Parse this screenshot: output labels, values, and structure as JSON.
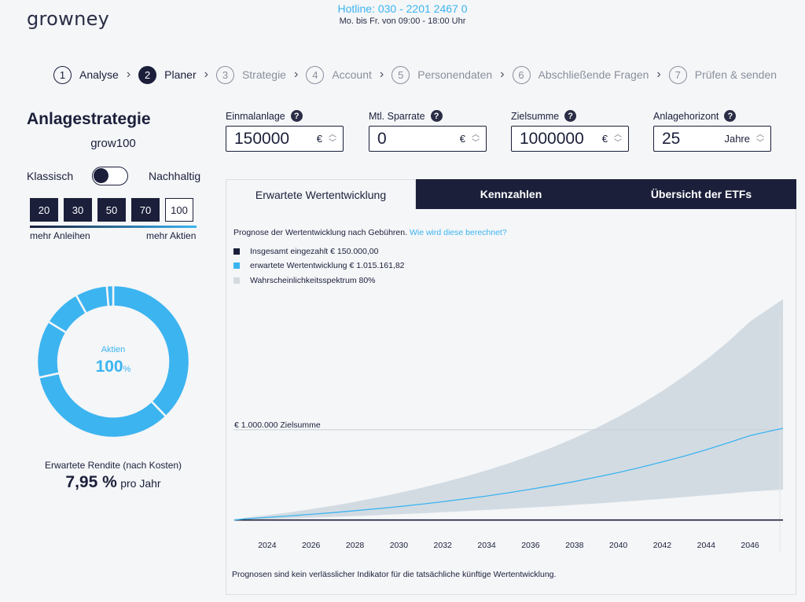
{
  "header": {
    "logo": "growney",
    "hotline": "Hotline: 030 - 2201 2467 0",
    "hours": "Mo. bis Fr. von 09:00 - 18:00 Uhr"
  },
  "stepper": [
    {
      "num": "1",
      "label": "Analyse",
      "state": "done"
    },
    {
      "num": "2",
      "label": "Planer",
      "state": "active"
    },
    {
      "num": "3",
      "label": "Strategie",
      "state": "todo"
    },
    {
      "num": "4",
      "label": "Account",
      "state": "todo"
    },
    {
      "num": "5",
      "label": "Personendaten",
      "state": "todo"
    },
    {
      "num": "6",
      "label": "Abschließende Fragen",
      "state": "todo"
    },
    {
      "num": "7",
      "label": "Prüfen & senden",
      "state": "todo"
    }
  ],
  "strategy": {
    "title": "Anlagestrategie",
    "name": "grow100",
    "toggle_left": "Klassisch",
    "toggle_right": "Nachhaltig",
    "allocations": [
      "20",
      "30",
      "50",
      "70",
      "100"
    ],
    "selected_allocation": "100",
    "bonds_label": "mehr Anleihen",
    "stocks_label": "mehr Aktien",
    "donut_label": "Aktien",
    "donut_value": "100",
    "donut_unit": "%",
    "donut_segments": [
      28,
      25,
      9,
      6,
      5,
      1
    ],
    "return_label": "Erwartete Rendite (nach Kosten)",
    "return_value": "7,95 %",
    "return_unit": "pro Jahr"
  },
  "inputs": {
    "einmal": {
      "label": "Einmalanlage",
      "value": "150000",
      "unit": "€"
    },
    "sparrate": {
      "label": "Mtl. Sparrate",
      "value": "0",
      "unit": "€"
    },
    "ziel": {
      "label": "Zielsumme",
      "value": "1000000",
      "unit": "€"
    },
    "horizont": {
      "label": "Anlagehorizont",
      "value": "25",
      "unit": "Jahre"
    },
    "help": "?"
  },
  "tabs": {
    "t1": "Erwartete Wertentwicklung",
    "t2": "Kennzahlen",
    "t3": "Übersicht der ETFs"
  },
  "chart_info": {
    "prognose": "Prognose der Wertentwicklung nach Gebühren.",
    "link": "Wie wird diese berechnet?",
    "legend1": "Insgesamt eingezahlt € 150.000,00",
    "legend2": "erwartete Wertentwicklung € 1.015.161,82",
    "legend3": "Wahrscheinlichkeitsspektrum 80%",
    "target_label": "€ 1.000.000 Zielsumme",
    "footnote": "Prognosen sind kein verlässlicher Indikator für die tatsächliche künftige Wertentwicklung."
  },
  "colors": {
    "navy": "#1b1f3a",
    "accent": "#3cb4f0",
    "band": "#d3dbe2",
    "target_line": "#c8ced6"
  },
  "chart_data": {
    "type": "area",
    "title": "Prognose der Wertentwicklung nach Gebühren.",
    "x": [
      2022,
      2023,
      2024,
      2025,
      2026,
      2027,
      2028,
      2029,
      2030,
      2031,
      2032,
      2033,
      2034,
      2035,
      2036,
      2037,
      2038,
      2039,
      2040,
      2041,
      2042,
      2043,
      2044,
      2045,
      2046,
      2047
    ],
    "xticks": [
      "2024",
      "2026",
      "2028",
      "2030",
      "2032",
      "2034",
      "2036",
      "2038",
      "2040",
      "2042",
      "2044",
      "2046"
    ],
    "xlim": [
      2022.5,
      2047.5
    ],
    "ylim": [
      0,
      2050000
    ],
    "target": 1000000,
    "series": [
      {
        "name": "Insgesamt eingezahlt",
        "type": "line",
        "values": [
          150000,
          150000,
          150000,
          150000,
          150000,
          150000,
          150000,
          150000,
          150000,
          150000,
          150000,
          150000,
          150000,
          150000,
          150000,
          150000,
          150000,
          150000,
          150000,
          150000,
          150000,
          150000,
          150000,
          150000,
          150000,
          150000
        ]
      },
      {
        "name": "erwartete Wertentwicklung",
        "type": "line",
        "values": [
          150000,
          162000,
          175000,
          189000,
          204000,
          220000,
          238000,
          257000,
          277000,
          299000,
          323000,
          349000,
          377000,
          407000,
          440000,
          475000,
          513000,
          554000,
          598000,
          645000,
          697000,
          752000,
          812000,
          877000,
          946000,
          1015000
        ]
      },
      {
        "name": "Wahrscheinlichkeitsspektrum 80% (unten)",
        "type": "band_lower",
        "values": [
          150000,
          155000,
          160000,
          166000,
          173000,
          180000,
          188000,
          196000,
          205000,
          214000,
          224000,
          234000,
          245000,
          256000,
          268000,
          280000,
          293000,
          306000,
          320000,
          335000,
          350000,
          366000,
          383000,
          400000,
          418000,
          437000
        ]
      },
      {
        "name": "Wahrscheinlichkeitsspektrum 80% (oben)",
        "type": "band_upper",
        "values": [
          150000,
          172000,
          196000,
          222000,
          252000,
          285000,
          322000,
          362000,
          405000,
          452000,
          503000,
          558000,
          618000,
          684000,
          756000,
          835000,
          922000,
          1017000,
          1122000,
          1238000,
          1365000,
          1505000,
          1660000,
          1830000,
          2020000,
          2230000
        ]
      }
    ]
  }
}
